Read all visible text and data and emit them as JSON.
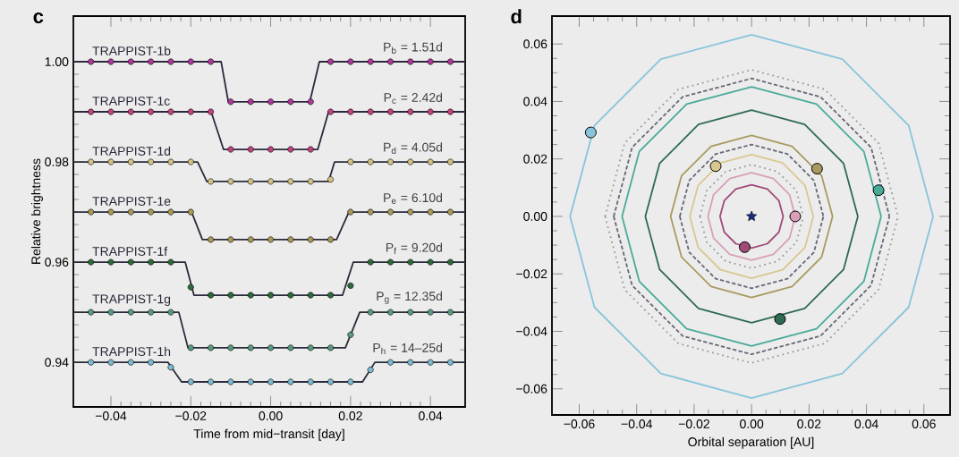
{
  "chart_data": [
    {
      "type": "line",
      "title": "c",
      "xlabel": "Time from mid−transit [day]",
      "ylabel": "Relative brightness",
      "xlim": [
        -0.0494,
        0.0487
      ],
      "ylim": [
        0.9311,
        1.0091
      ],
      "xticks": [
        {
          "value": -0.04,
          "label": "−0.04"
        },
        {
          "value": -0.02,
          "label": "−0.02"
        },
        {
          "value": 0,
          "label": "0.00"
        },
        0.02,
        0.04
      ],
      "yticks": [
        0.94,
        0.96,
        0.98,
        {
          "value": 1,
          "label": "1.00"
        }
      ],
      "series": [
        {
          "type": "scatter",
          "color": "#b0389a",
          "marker": "circle",
          "x": [
            -0.045,
            -0.04,
            -0.035,
            -0.03,
            -0.025,
            -0.02,
            -0.015,
            -0.01,
            -0.005,
            0,
            0.005,
            0.01,
            0.015,
            0.02,
            0.025,
            0.03,
            0.035,
            0.04,
            0.045
          ],
          "values": [
            1,
            1,
            1,
            1,
            1,
            1,
            1,
            0.992,
            0.992,
            0.992,
            0.992,
            0.992,
            1,
            1,
            1,
            1,
            1,
            1,
            1
          ]
        },
        {
          "type": "scatter",
          "color": "#c0457f",
          "marker": "circle",
          "x": [
            -0.045,
            -0.04,
            -0.035,
            -0.03,
            -0.025,
            -0.02,
            -0.015,
            -0.01,
            -0.005,
            0,
            0.005,
            0.01,
            0.015,
            0.02,
            0.025,
            0.03,
            0.035,
            0.04,
            0.045
          ],
          "values": [
            0.99,
            0.99,
            0.99,
            0.99,
            0.99,
            0.99,
            0.99,
            0.9825,
            0.9825,
            0.9825,
            0.9825,
            0.9825,
            0.99,
            0.99,
            0.99,
            0.99,
            0.99,
            0.99,
            0.99
          ]
        },
        {
          "type": "scatter",
          "color": "#d2c184",
          "marker": "circle",
          "x": [
            -0.045,
            -0.04,
            -0.035,
            -0.03,
            -0.025,
            -0.02,
            -0.015,
            -0.01,
            -0.005,
            0,
            0.005,
            0.01,
            0.015,
            0.02,
            0.025,
            0.03,
            0.035,
            0.04,
            0.045
          ],
          "values": [
            0.98,
            0.98,
            0.98,
            0.98,
            0.98,
            0.98,
            0.9761,
            0.9761,
            0.9761,
            0.9761,
            0.9761,
            0.9761,
            0.9765,
            0.98,
            0.98,
            0.98,
            0.98,
            0.98,
            0.98
          ]
        },
        {
          "type": "scatter",
          "color": "#a89a5a",
          "marker": "circle",
          "x": [
            -0.045,
            -0.04,
            -0.035,
            -0.03,
            -0.025,
            -0.02,
            -0.015,
            -0.01,
            -0.005,
            0,
            0.005,
            0.01,
            0.015,
            0.02,
            0.025,
            0.03,
            0.035,
            0.04,
            0.045
          ],
          "values": [
            0.97,
            0.97,
            0.97,
            0.97,
            0.97,
            0.97,
            0.9645,
            0.9645,
            0.9645,
            0.9645,
            0.9645,
            0.9645,
            0.9645,
            0.97,
            0.97,
            0.97,
            0.97,
            0.97,
            0.97
          ]
        },
        {
          "type": "scatter",
          "color": "#2e6b3a",
          "marker": "circle",
          "x": [
            -0.045,
            -0.04,
            -0.035,
            -0.03,
            -0.025,
            -0.02,
            -0.015,
            -0.01,
            -0.005,
            0,
            0.005,
            0.01,
            0.015,
            0.02,
            0.025,
            0.03,
            0.035,
            0.04,
            0.045
          ],
          "values": [
            0.96,
            0.96,
            0.96,
            0.96,
            0.96,
            0.955,
            0.9534,
            0.9534,
            0.9534,
            0.9534,
            0.9534,
            0.9534,
            0.9534,
            0.9553,
            0.96,
            0.96,
            0.96,
            0.96,
            0.96
          ]
        },
        {
          "type": "scatter",
          "color": "#5a9a80",
          "marker": "circle",
          "x": [
            -0.045,
            -0.04,
            -0.035,
            -0.03,
            -0.025,
            -0.02,
            -0.015,
            -0.01,
            -0.005,
            0,
            0.005,
            0.01,
            0.015,
            0.02,
            0.025,
            0.03,
            0.035,
            0.04,
            0.045
          ],
          "values": [
            0.95,
            0.95,
            0.95,
            0.95,
            0.95,
            0.9429,
            0.9429,
            0.9429,
            0.9429,
            0.9429,
            0.9429,
            0.9429,
            0.9429,
            0.9455,
            0.95,
            0.95,
            0.95,
            0.95,
            0.95
          ]
        },
        {
          "type": "scatter",
          "color": "#7fb8d0",
          "marker": "circle",
          "x": [
            -0.045,
            -0.04,
            -0.035,
            -0.03,
            -0.025,
            -0.02,
            -0.015,
            -0.01,
            -0.005,
            0,
            0.005,
            0.01,
            0.015,
            0.02,
            0.025,
            0.03,
            0.035,
            0.04,
            0.045
          ],
          "values": [
            0.94,
            0.94,
            0.94,
            0.94,
            0.939,
            0.9361,
            0.9361,
            0.9361,
            0.9361,
            0.9361,
            0.9361,
            0.9361,
            0.9361,
            0.9361,
            0.9385,
            0.94,
            0.94,
            0.94,
            0.94
          ]
        },
        {
          "name": "TRAPPIST-1b",
          "color": "#2a2a3a",
          "x": [
            -0.0494,
            -0.0124,
            -0.0106,
            0.0098,
            0.0122,
            0.0487
          ],
          "values": [
            1,
            1,
            0.992,
            0.992,
            1,
            1
          ]
        },
        {
          "name": "TRAPPIST-1c",
          "color": "#2a2a3a",
          "x": [
            -0.0494,
            -0.0149,
            -0.0118,
            0.0118,
            0.0145,
            0.0487
          ],
          "values": [
            0.99,
            0.99,
            0.9825,
            0.9825,
            0.99,
            0.99
          ]
        },
        {
          "name": "TRAPPIST-1d",
          "color": "#2a2a3a",
          "x": [
            -0.0494,
            -0.0183,
            -0.016,
            0.0145,
            0.016,
            0.0487
          ],
          "values": [
            0.98,
            0.98,
            0.9761,
            0.9761,
            0.98,
            0.98
          ]
        },
        {
          "name": "TRAPPIST-1e",
          "color": "#2a2a3a",
          "x": [
            -0.0494,
            -0.0198,
            -0.0171,
            0.0165,
            0.0196,
            0.0487
          ],
          "values": [
            0.97,
            0.97,
            0.9645,
            0.9645,
            0.97,
            0.97
          ]
        },
        {
          "name": "TRAPPIST-1f",
          "color": "#2a2a3a",
          "x": [
            -0.0494,
            -0.0214,
            -0.0192,
            0.018,
            0.0207,
            0.0487
          ],
          "values": [
            0.96,
            0.96,
            0.9534,
            0.9534,
            0.96,
            0.96
          ]
        },
        {
          "name": "TRAPPIST-1g",
          "color": "#2a2a3a",
          "x": [
            -0.0494,
            -0.023,
            -0.0207,
            0.0187,
            0.0223,
            0.0487
          ],
          "values": [
            0.95,
            0.95,
            0.9429,
            0.9429,
            0.95,
            0.95
          ]
        },
        {
          "name": "TRAPPIST-1h",
          "color": "#2a2a3a",
          "x": [
            -0.0494,
            -0.0257,
            -0.0223,
            0.023,
            0.0261,
            0.0487
          ],
          "values": [
            0.94,
            0.94,
            0.9361,
            0.9361,
            0.94,
            0.94
          ]
        }
      ],
      "annotations": [
        {
          "text": "P$_{b}$ = 1.51d",
          "y": 1
        },
        {
          "text": "P$_{c}$ = 2.42d",
          "y": 0.99
        },
        {
          "text": "P$_{d}$ = 4.05d",
          "y": 0.98
        },
        {
          "text": "P$_{e}$ = 6.10d",
          "y": 0.97
        },
        {
          "text": "P$_{f}$ = 9.20d",
          "y": 0.96
        },
        {
          "text": "P$_{g}$ = 12.35d",
          "y": 0.95
        },
        {
          "text": "P$_{h}$ = 14–25d",
          "y": 0.94
        }
      ]
    },
    {
      "type": "line",
      "title": "d",
      "xlabel": "Orbital separation [AU]",
      "xlim": [
        -0.0695,
        0.0691
      ],
      "ylim": [
        -0.0691,
        0.0697
      ],
      "xticks": [
        {
          "value": -0.06,
          "label": "−0.06"
        },
        {
          "value": -0.04,
          "label": "−0.04"
        },
        {
          "value": -0.02,
          "label": "−0.02"
        },
        {
          "value": 0,
          "label": "0.00"
        },
        0.02,
        0.04,
        0.06
      ],
      "yticks": [
        {
          "value": -0.06,
          "label": "−0.06"
        },
        {
          "value": -0.04,
          "label": "−0.04"
        },
        {
          "value": -0.02,
          "label": "−0.02"
        },
        {
          "value": 0,
          "label": "0.00"
        },
        0.02,
        0.04,
        0.06
      ],
      "series": [
        {
          "color": "#999999",
          "line_style": "dotted",
          "x": [
            -0.051,
            -0.0442,
            -0.0255,
            0,
            0.0255,
            0.0442,
            0.051
          ],
          "values": [
            0,
            0.0255,
            0.0442,
            0.051,
            0.0442,
            0.0255,
            0
          ]
        },
        {
          "color": "#999999",
          "line_style": "dotted",
          "x": [
            -0.051,
            -0.0442,
            -0.0255,
            0,
            0.0255,
            0.0442,
            0.051
          ],
          "values": [
            0,
            -0.0255,
            -0.0442,
            -0.051,
            -0.0442,
            -0.0255,
            0
          ]
        },
        {
          "color": "#666677",
          "line_style": "dashed",
          "x": [
            -0.048,
            -0.0416,
            -0.024,
            0,
            0.024,
            0.0416,
            0.048
          ],
          "values": [
            0,
            0.024,
            0.0416,
            0.048,
            0.0416,
            0.024,
            0
          ]
        },
        {
          "color": "#666677",
          "line_style": "dashed",
          "x": [
            -0.048,
            -0.0416,
            -0.024,
            0,
            0.024,
            0.0416,
            0.048
          ],
          "values": [
            0,
            -0.024,
            -0.0416,
            -0.048,
            -0.0416,
            -0.024,
            0
          ]
        },
        {
          "color": "#666677",
          "line_style": "dashed",
          "x": [
            -0.025,
            -0.0217,
            -0.0125,
            0,
            0.0125,
            0.0217,
            0.025
          ],
          "values": [
            0,
            0.0125,
            0.0217,
            0.025,
            0.0217,
            0.0125,
            0
          ]
        },
        {
          "color": "#666677",
          "line_style": "dashed",
          "x": [
            -0.025,
            -0.0217,
            -0.0125,
            0,
            0.0125,
            0.0217,
            0.025
          ],
          "values": [
            0,
            -0.0125,
            -0.0217,
            -0.025,
            -0.0217,
            -0.0125,
            0
          ]
        },
        {
          "color": "#999999",
          "line_style": "dotted",
          "x": [
            -0.018,
            -0.0156,
            -0.009,
            0,
            0.009,
            0.0156,
            0.018
          ],
          "values": [
            0,
            0.009,
            0.0156,
            0.018,
            0.0156,
            0.009,
            0
          ]
        },
        {
          "color": "#999999",
          "line_style": "dotted",
          "x": [
            -0.018,
            -0.0156,
            -0.009,
            0,
            0.009,
            0.0156,
            0.018
          ],
          "values": [
            0,
            -0.009,
            -0.0156,
            -0.018,
            -0.0156,
            -0.009,
            0
          ]
        },
        {
          "color": "#a04a78",
          "x": [
            -0.011,
            -0.0095,
            -0.0055,
            0,
            0.0055,
            0.0095,
            0.011
          ],
          "values": [
            0,
            0.0055,
            0.0095,
            0.011,
            0.0095,
            0.0055,
            0
          ]
        },
        {
          "color": "#a04a78",
          "x": [
            -0.011,
            -0.0095,
            -0.0055,
            0,
            0.0055,
            0.0095,
            0.011
          ],
          "values": [
            0,
            -0.0055,
            -0.0095,
            -0.011,
            -0.0095,
            -0.0055,
            0
          ]
        },
        {
          "color": "#d8a0b8",
          "x": [
            -0.0152,
            -0.0132,
            -0.0076,
            0,
            0.0076,
            0.0132,
            0.0152
          ],
          "values": [
            0,
            0.0076,
            0.0132,
            0.0152,
            0.0132,
            0.0076,
            0
          ]
        },
        {
          "color": "#d8a0b8",
          "x": [
            -0.0152,
            -0.0132,
            -0.0076,
            0,
            0.0076,
            0.0132,
            0.0152
          ],
          "values": [
            0,
            -0.0076,
            -0.0132,
            -0.0152,
            -0.0132,
            -0.0076,
            0
          ]
        },
        {
          "color": "#d8c890",
          "x": [
            -0.0215,
            -0.0186,
            -0.0108,
            0,
            0.0108,
            0.0186,
            0.0215
          ],
          "values": [
            0,
            0.0108,
            0.0186,
            0.0215,
            0.0186,
            0.0108,
            0
          ]
        },
        {
          "color": "#d8c890",
          "x": [
            -0.0215,
            -0.0186,
            -0.0108,
            0,
            0.0108,
            0.0186,
            0.0215
          ],
          "values": [
            0,
            -0.0108,
            -0.0186,
            -0.0215,
            -0.0186,
            -0.0108,
            0
          ]
        },
        {
          "color": "#a89a60",
          "x": [
            -0.0282,
            -0.0244,
            -0.0141,
            0,
            0.0141,
            0.0244,
            0.0282
          ],
          "values": [
            0,
            0.0141,
            0.0244,
            0.0282,
            0.0244,
            0.0141,
            0
          ]
        },
        {
          "color": "#a89a60",
          "x": [
            -0.0282,
            -0.0244,
            -0.0141,
            0,
            0.0141,
            0.0244,
            0.0282
          ],
          "values": [
            0,
            -0.0141,
            -0.0244,
            -0.0282,
            -0.0244,
            -0.0141,
            0
          ]
        },
        {
          "color": "#2e6b50",
          "x": [
            -0.037,
            -0.032,
            -0.0185,
            0,
            0.0185,
            0.032,
            0.037
          ],
          "values": [
            0,
            0.0185,
            0.032,
            0.037,
            0.032,
            0.0185,
            0
          ]
        },
        {
          "color": "#2e6b50",
          "x": [
            -0.037,
            -0.032,
            -0.0185,
            0,
            0.0185,
            0.032,
            0.037
          ],
          "values": [
            0,
            -0.0185,
            -0.032,
            -0.037,
            -0.032,
            -0.0185,
            0
          ]
        },
        {
          "color": "#4aaa98",
          "x": [
            -0.0451,
            -0.0391,
            -0.0226,
            0,
            0.0226,
            0.0391,
            0.0451
          ],
          "values": [
            0,
            0.0226,
            0.0391,
            0.0451,
            0.0391,
            0.0226,
            0
          ]
        },
        {
          "color": "#4aaa98",
          "x": [
            -0.0451,
            -0.0391,
            -0.0226,
            0,
            0.0226,
            0.0391,
            0.0451
          ],
          "values": [
            0,
            -0.0226,
            -0.0391,
            -0.0451,
            -0.0391,
            -0.0226,
            0
          ]
        },
        {
          "color": "#88c4dc",
          "x": [
            -0.0632,
            -0.0547,
            -0.0316,
            0,
            0.0316,
            0.0547,
            0.0632
          ],
          "values": [
            0,
            0.0316,
            0.0547,
            0.0632,
            0.0547,
            0.0316,
            0
          ]
        },
        {
          "color": "#88c4dc",
          "x": [
            -0.0632,
            -0.0547,
            -0.0316,
            0,
            0.0316,
            0.0547,
            0.0632
          ],
          "values": [
            0,
            -0.0316,
            -0.0547,
            -0.0632,
            -0.0547,
            -0.0316,
            0
          ]
        },
        {
          "type": "scatter",
          "marker": "circle",
          "x": [
            -0.0024,
            0.0152,
            -0.0125,
            0.0228,
            0.0099,
            0.0442,
            -0.056
          ],
          "values": [
            -0.0107,
            0,
            0.0175,
            0.0166,
            -0.0357,
            0.0091,
            0.0292
          ],
          "colors": [
            "#a04a78",
            "#d8a0b8",
            "#d8c890",
            "#a89a60",
            "#2e6b50",
            "#4aaa98",
            "#88c4dc"
          ]
        },
        {
          "type": "scatter",
          "marker": "star",
          "color": "#1a2a80",
          "x": [
            0
          ],
          "values": [
            0
          ]
        }
      ]
    }
  ]
}
